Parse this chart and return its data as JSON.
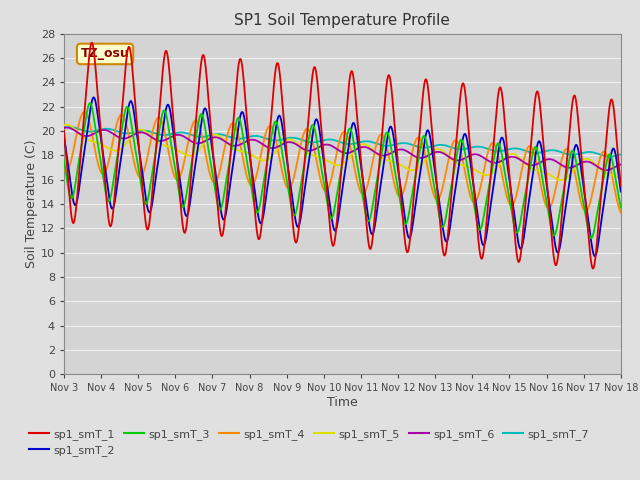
{
  "title": "SP1 Soil Temperature Profile",
  "xlabel": "Time",
  "ylabel": "Soil Temperature (C)",
  "ylim": [
    0,
    28
  ],
  "yticks": [
    0,
    2,
    4,
    6,
    8,
    10,
    12,
    14,
    16,
    18,
    20,
    22,
    24,
    26,
    28
  ],
  "xtick_labels": [
    "Nov 3",
    "Nov 4",
    "Nov 5",
    "Nov 6",
    "Nov 7",
    "Nov 8",
    "Nov 9",
    "Nov 10",
    "Nov 11",
    "Nov 12",
    "Nov 13",
    "Nov 14",
    "Nov 15",
    "Nov 16",
    "Nov 17",
    "Nov 18"
  ],
  "annotation_text": "TZ_osu",
  "annotation_bg": "#ffffcc",
  "annotation_border": "#cc8800",
  "series": [
    {
      "name": "sp1_smT_1",
      "color": "#dd0000"
    },
    {
      "name": "sp1_smT_2",
      "color": "#0000cc"
    },
    {
      "name": "sp1_smT_3",
      "color": "#00cc00"
    },
    {
      "name": "sp1_smT_4",
      "color": "#ff8800"
    },
    {
      "name": "sp1_smT_5",
      "color": "#dddd00"
    },
    {
      "name": "sp1_smT_6",
      "color": "#aa00aa"
    },
    {
      "name": "sp1_smT_7",
      "color": "#00bbbb"
    }
  ],
  "bg_color": "#e0e0e0",
  "plot_bg_color": "#d4d4d4",
  "grid_color": "#f0f0f0",
  "title_color": "#333333",
  "label_color": "#444444",
  "tick_color": "#444444"
}
